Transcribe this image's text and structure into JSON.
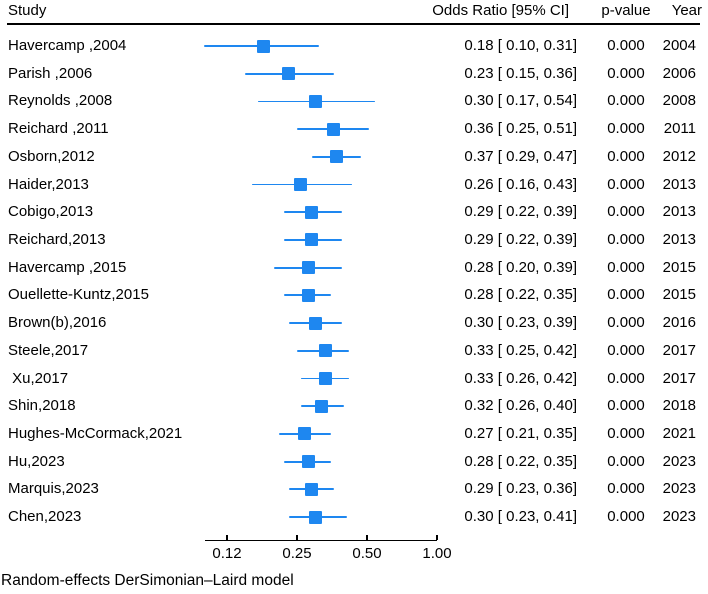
{
  "header": {
    "study": "Study",
    "or_ci": "Odds Ratio [95% CI]",
    "p_value": "p-value",
    "year": "Year"
  },
  "footer": {
    "model_note": "Random-effects DerSimonian–Laird model"
  },
  "colors": {
    "marker": "#1E87F0",
    "ci_line": "#1E87F0",
    "text": "#000000",
    "axis": "#000000"
  },
  "chart_data": {
    "type": "scatter",
    "variant": "forest-plot",
    "effect_measure": "Odds Ratio",
    "x_scale": "log2",
    "x_axis_range": [
      0.1,
      1.0
    ],
    "x_ticks": [
      {
        "value": 0.125,
        "label": "0.12"
      },
      {
        "value": 0.25,
        "label": "0.25"
      },
      {
        "value": 0.5,
        "label": "0.50"
      },
      {
        "value": 1.0,
        "label": "1.00"
      }
    ],
    "columns": [
      "Study",
      "Odds Ratio [95% CI]",
      "p-value",
      "Year"
    ],
    "studies": [
      {
        "label": "Havercamp ,2004",
        "est": 0.18,
        "lo": 0.1,
        "hi": 0.31,
        "or_text": "0.18 [ 0.10, 0.31]",
        "p": "0.000",
        "year": "2004"
      },
      {
        "label": "Parish ,2006",
        "est": 0.23,
        "lo": 0.15,
        "hi": 0.36,
        "or_text": "0.23 [ 0.15, 0.36]",
        "p": "0.000",
        "year": "2006"
      },
      {
        "label": "Reynolds ,2008",
        "est": 0.3,
        "lo": 0.17,
        "hi": 0.54,
        "or_text": "0.30 [ 0.17, 0.54]",
        "p": "0.000",
        "year": "2008"
      },
      {
        "label": "Reichard ,2011",
        "est": 0.36,
        "lo": 0.25,
        "hi": 0.51,
        "or_text": "0.36 [ 0.25, 0.51]",
        "p": "0.000",
        "year": "2011"
      },
      {
        "label": "Osborn,2012",
        "est": 0.37,
        "lo": 0.29,
        "hi": 0.47,
        "or_text": "0.37 [ 0.29, 0.47]",
        "p": "0.000",
        "year": "2012"
      },
      {
        "label": "Haider,2013",
        "est": 0.26,
        "lo": 0.16,
        "hi": 0.43,
        "or_text": "0.26 [ 0.16, 0.43]",
        "p": "0.000",
        "year": "2013"
      },
      {
        "label": "Cobigo,2013",
        "est": 0.29,
        "lo": 0.22,
        "hi": 0.39,
        "or_text": "0.29 [ 0.22, 0.39]",
        "p": "0.000",
        "year": "2013"
      },
      {
        "label": "Reichard,2013",
        "est": 0.29,
        "lo": 0.22,
        "hi": 0.39,
        "or_text": "0.29 [ 0.22, 0.39]",
        "p": "0.000",
        "year": "2013"
      },
      {
        "label": "Havercamp ,2015",
        "est": 0.28,
        "lo": 0.2,
        "hi": 0.39,
        "or_text": "0.28 [ 0.20, 0.39]",
        "p": "0.000",
        "year": "2015"
      },
      {
        "label": "Ouellette-Kuntz,2015",
        "est": 0.28,
        "lo": 0.22,
        "hi": 0.35,
        "or_text": "0.28 [ 0.22, 0.35]",
        "p": "0.000",
        "year": "2015"
      },
      {
        "label": "Brown(b),2016",
        "est": 0.3,
        "lo": 0.23,
        "hi": 0.39,
        "or_text": "0.30 [ 0.23, 0.39]",
        "p": "0.000",
        "year": "2016"
      },
      {
        "label": "Steele,2017",
        "est": 0.33,
        "lo": 0.25,
        "hi": 0.42,
        "or_text": "0.33 [ 0.25, 0.42]",
        "p": "0.000",
        "year": "2017"
      },
      {
        "label": " Xu,2017",
        "est": 0.33,
        "lo": 0.26,
        "hi": 0.42,
        "or_text": "0.33 [ 0.26, 0.42]",
        "p": "0.000",
        "year": "2017"
      },
      {
        "label": "Shin,2018",
        "est": 0.32,
        "lo": 0.26,
        "hi": 0.4,
        "or_text": "0.32 [ 0.26, 0.40]",
        "p": "0.000",
        "year": "2018"
      },
      {
        "label": "Hughes-McCormack,2021",
        "est": 0.27,
        "lo": 0.21,
        "hi": 0.35,
        "or_text": "0.27 [ 0.21, 0.35]",
        "p": "0.000",
        "year": "2021"
      },
      {
        "label": "Hu,2023",
        "est": 0.28,
        "lo": 0.22,
        "hi": 0.35,
        "or_text": "0.28 [ 0.22, 0.35]",
        "p": "0.000",
        "year": "2023"
      },
      {
        "label": "Marquis,2023",
        "est": 0.29,
        "lo": 0.23,
        "hi": 0.36,
        "or_text": "0.29 [ 0.23, 0.36]",
        "p": "0.000",
        "year": "2023"
      },
      {
        "label": "Chen,2023",
        "est": 0.3,
        "lo": 0.23,
        "hi": 0.41,
        "or_text": "0.30 [ 0.23, 0.41]",
        "p": "0.000",
        "year": "2023"
      }
    ],
    "footnote": "Random-effects DerSimonian–Laird model",
    "legend": "none",
    "grid": false
  }
}
